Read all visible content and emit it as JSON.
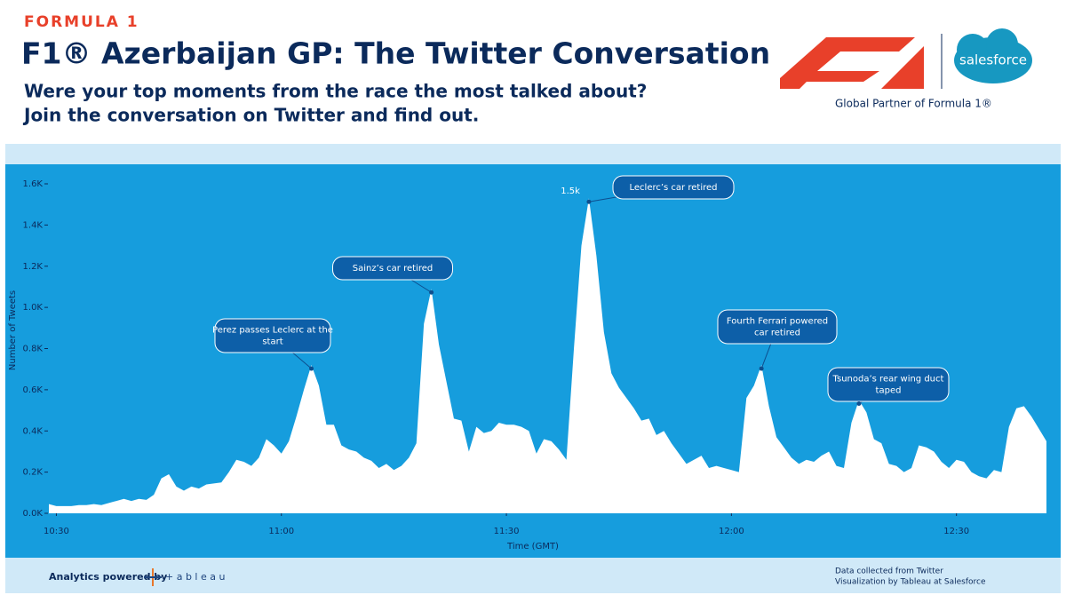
{
  "header": {
    "brand": "FORMULA 1",
    "title": "F1® Azerbaijan GP: The Twitter Conversation",
    "subtitle_lines": [
      "Were your top moments from the race the most talked about?",
      "Join the conversation on Twitter and find out."
    ],
    "partner_logo": "salesforce",
    "partner_text": "Global Partner of Formula 1®"
  },
  "chart_data": {
    "type": "area",
    "color": "#ffffff",
    "background": "#169ddd",
    "x_label": "Time (GMT)",
    "y_label": "Number of Tweets",
    "x": [
      "10:29",
      "10:30",
      "10:31",
      "10:32",
      "10:33",
      "10:34",
      "10:35",
      "10:36",
      "10:37",
      "10:38",
      "10:39",
      "10:40",
      "10:41",
      "10:42",
      "10:43",
      "10:44",
      "10:45",
      "10:46",
      "10:47",
      "10:48",
      "10:49",
      "10:50",
      "10:51",
      "10:52",
      "10:53",
      "10:54",
      "10:55",
      "10:56",
      "10:57",
      "10:58",
      "10:59",
      "11:00",
      "11:01",
      "11:02",
      "11:03",
      "11:04",
      "11:05",
      "11:06",
      "11:07",
      "11:08",
      "11:09",
      "11:10",
      "11:11",
      "11:12",
      "11:13",
      "11:14",
      "11:15",
      "11:16",
      "11:17",
      "11:18",
      "11:19",
      "11:20",
      "11:21",
      "11:22",
      "11:23",
      "11:24",
      "11:25",
      "11:26",
      "11:27",
      "11:28",
      "11:29",
      "11:30",
      "11:31",
      "11:32",
      "11:33",
      "11:34",
      "11:35",
      "11:36",
      "11:37",
      "11:38",
      "11:39",
      "11:40",
      "11:41",
      "11:42",
      "11:43",
      "11:44",
      "11:45",
      "11:46",
      "11:47",
      "11:48",
      "11:49",
      "11:50",
      "11:51",
      "11:52",
      "11:53",
      "11:54",
      "11:55",
      "11:56",
      "11:57",
      "11:58",
      "11:59",
      "12:00",
      "12:01",
      "12:02",
      "12:03",
      "12:04",
      "12:05",
      "12:06",
      "12:07",
      "12:08",
      "12:09",
      "12:10",
      "12:11",
      "12:12",
      "12:13",
      "12:14",
      "12:15",
      "12:16",
      "12:17",
      "12:18",
      "12:19",
      "12:20",
      "12:21",
      "12:22",
      "12:23",
      "12:24",
      "12:25",
      "12:26",
      "12:27",
      "12:28",
      "12:29",
      "12:30",
      "12:31",
      "12:32",
      "12:33",
      "12:34",
      "12:35",
      "12:36",
      "12:37",
      "12:38",
      "12:39",
      "12:40",
      "12:41",
      "12:42"
    ],
    "values": [
      45,
      35,
      35,
      35,
      40,
      40,
      45,
      40,
      50,
      60,
      70,
      60,
      70,
      65,
      90,
      170,
      190,
      130,
      110,
      130,
      120,
      140,
      145,
      150,
      200,
      260,
      250,
      230,
      270,
      360,
      330,
      290,
      350,
      470,
      600,
      720,
      620,
      430,
      430,
      330,
      310,
      300,
      270,
      255,
      220,
      240,
      210,
      230,
      270,
      340,
      920,
      1090,
      820,
      640,
      460,
      450,
      300,
      420,
      390,
      400,
      440,
      430,
      430,
      420,
      400,
      290,
      360,
      350,
      310,
      260,
      800,
      1300,
      1530,
      1250,
      880,
      680,
      610,
      560,
      510,
      450,
      460,
      380,
      400,
      340,
      290,
      240,
      260,
      280,
      220,
      230,
      220,
      210,
      200,
      560,
      620,
      720,
      520,
      370,
      320,
      270,
      240,
      260,
      250,
      280,
      300,
      230,
      220,
      440,
      550,
      490,
      360,
      340,
      240,
      230,
      200,
      220,
      330,
      320,
      300,
      250,
      220,
      260,
      250,
      200,
      180,
      170,
      210,
      200,
      420,
      510,
      520,
      470,
      410,
      350
    ],
    "xlim": [
      "10:29",
      "12:42"
    ],
    "xticks": [
      "10:30",
      "11:00",
      "11:30",
      "12:00",
      "12:30"
    ],
    "ylim": [
      0,
      1600
    ],
    "yticks": [
      {
        "value": 0,
        "label": "0.0K"
      },
      {
        "value": 200,
        "label": "0.2K"
      },
      {
        "value": 400,
        "label": "0.4K"
      },
      {
        "value": 600,
        "label": "0.6K"
      },
      {
        "value": 800,
        "label": "0.8K"
      },
      {
        "value": 1000,
        "label": "1.0K"
      },
      {
        "value": 1200,
        "label": "1.2K"
      },
      {
        "value": 1400,
        "label": "1.4K"
      },
      {
        "value": 1600,
        "label": "1.6K"
      }
    ],
    "labels": [
      {
        "x": "11:41",
        "text": "1.5k"
      }
    ],
    "annotations": [
      {
        "x": "11:04",
        "text": "Perez passes Leclerc at the start"
      },
      {
        "x": "11:20",
        "text": "Sainz’s car retired"
      },
      {
        "x": "11:41",
        "text": "Leclerc’s car retired"
      },
      {
        "x": "12:04",
        "text": "Fourth Ferrari powered car retired"
      },
      {
        "x": "12:17",
        "text": "Tsunoda’s rear wing duct taped"
      }
    ]
  },
  "footer": {
    "powered_by": "Analytics powered by",
    "tableau": "+ a b l e a u",
    "credits": [
      "Data collected from Twitter",
      "Visualization by Tableau at Salesforce"
    ]
  }
}
